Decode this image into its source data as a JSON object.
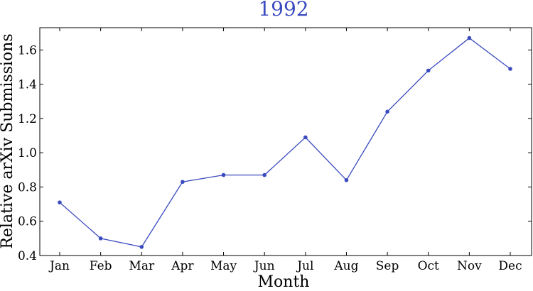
{
  "chart_data": {
    "type": "line",
    "title": "1992",
    "xlabel": "Month",
    "ylabel": "Relative arXiv Submissions",
    "categories": [
      "Jan",
      "Feb",
      "Mar",
      "Apr",
      "May",
      "Jun",
      "Jul",
      "Aug",
      "Sep",
      "Oct",
      "Nov",
      "Dec"
    ],
    "series": [
      {
        "values": [
          0.71,
          0.5,
          0.45,
          0.83,
          0.87,
          0.87,
          1.09,
          0.84,
          1.24,
          1.48,
          1.67,
          1.49
        ]
      }
    ],
    "ylim": [
      0.4,
      1.72
    ],
    "yticks": [
      "0.4",
      "0.6",
      "0.8",
      "1.0",
      "1.2",
      "1.4",
      "1.6"
    ],
    "grid": false,
    "colors": {
      "line": "#3a4bbf",
      "title": "#3a4bbf",
      "axis": "#000000"
    }
  }
}
